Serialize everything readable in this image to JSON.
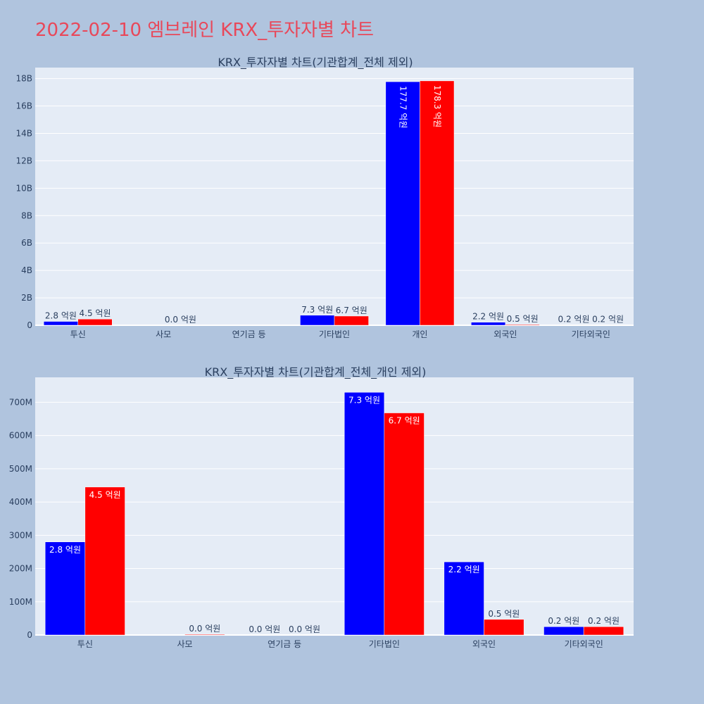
{
  "page_title": "2022-02-10 엠브레인 KRX_투자자별 차트",
  "colors": {
    "buy": "#0000ff",
    "sell": "#ff0000",
    "plot_bg": "#e5ecf6",
    "text": "#2a3f5f",
    "page_bg": "#b0c4de"
  },
  "chart_data": [
    {
      "type": "bar",
      "title": "KRX_투자자별 차트(기관합계_전체 제외)",
      "categories": [
        "투신",
        "사모",
        "연기금 등",
        "기타법인",
        "개인",
        "외국인",
        "기타외국인"
      ],
      "yticks": [
        {
          "value": 0,
          "label": "0"
        },
        {
          "value": 2000000000,
          "label": "2B"
        },
        {
          "value": 4000000000,
          "label": "4B"
        },
        {
          "value": 6000000000,
          "label": "6B"
        },
        {
          "value": 8000000000,
          "label": "8B"
        },
        {
          "value": 10000000000,
          "label": "10B"
        },
        {
          "value": 12000000000,
          "label": "12B"
        },
        {
          "value": 14000000000,
          "label": "14B"
        },
        {
          "value": 16000000000,
          "label": "16B"
        },
        {
          "value": 18000000000,
          "label": "18B"
        }
      ],
      "ylim": [
        0,
        18800000000
      ],
      "series": [
        {
          "values": [
            280000000,
            0,
            0,
            730000000,
            17770000000,
            220000000,
            20000000
          ],
          "labels": [
            "2.8 억원",
            "",
            "",
            "7.3 억원",
            "177.7 억원",
            "2.2 억원",
            "0.2 억원"
          ]
        },
        {
          "values": [
            450000000,
            0,
            0,
            670000000,
            17830000000,
            50000000,
            20000000
          ],
          "labels": [
            "4.5 억원",
            "0.0 억원",
            "",
            "6.7 억원",
            "178.3 억원",
            "0.5 억원",
            "0.2 억원"
          ]
        }
      ]
    },
    {
      "type": "bar",
      "title": "KRX_투자자별 차트(기관합계_전체_개인 제외)",
      "categories": [
        "투신",
        "사모",
        "연기금 등",
        "기타법인",
        "외국인",
        "기타외국인"
      ],
      "yticks": [
        {
          "value": 0,
          "label": "0"
        },
        {
          "value": 100000000,
          "label": "100M"
        },
        {
          "value": 200000000,
          "label": "200M"
        },
        {
          "value": 300000000,
          "label": "300M"
        },
        {
          "value": 400000000,
          "label": "400M"
        },
        {
          "value": 500000000,
          "label": "500M"
        },
        {
          "value": 600000000,
          "label": "600M"
        },
        {
          "value": 700000000,
          "label": "700M"
        }
      ],
      "ylim": [
        0,
        775000000
      ],
      "series": [
        {
          "values": [
            280000000,
            0,
            0,
            730000000,
            220000000,
            25000000
          ],
          "labels": [
            "2.8 억원",
            "",
            "0.0 억원",
            "7.3 억원",
            "2.2 억원",
            "0.2 억원"
          ]
        },
        {
          "values": [
            445000000,
            2000000,
            0,
            668000000,
            47000000,
            25000000
          ],
          "labels": [
            "4.5 억원",
            "0.0 억원",
            "0.0 억원",
            "6.7 억원",
            "0.5 억원",
            "0.2 억원"
          ]
        }
      ]
    }
  ]
}
